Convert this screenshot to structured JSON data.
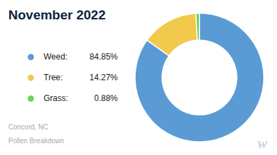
{
  "chart_data": {
    "type": "donut",
    "title": "November 2022",
    "subtitle": [
      "Concord, NC",
      "Pollen Breakdown"
    ],
    "categories": [
      "Weed:",
      "Tree:",
      "Grass:"
    ],
    "values": [
      84.85,
      14.27,
      0.88
    ],
    "value_labels": [
      "84.85%",
      "14.27%",
      "0.88%"
    ],
    "colors": [
      "#5B9BD5",
      "#F2C94C",
      "#6FCF62"
    ],
    "legend": "left",
    "annotations": [
      "w"
    ]
  }
}
